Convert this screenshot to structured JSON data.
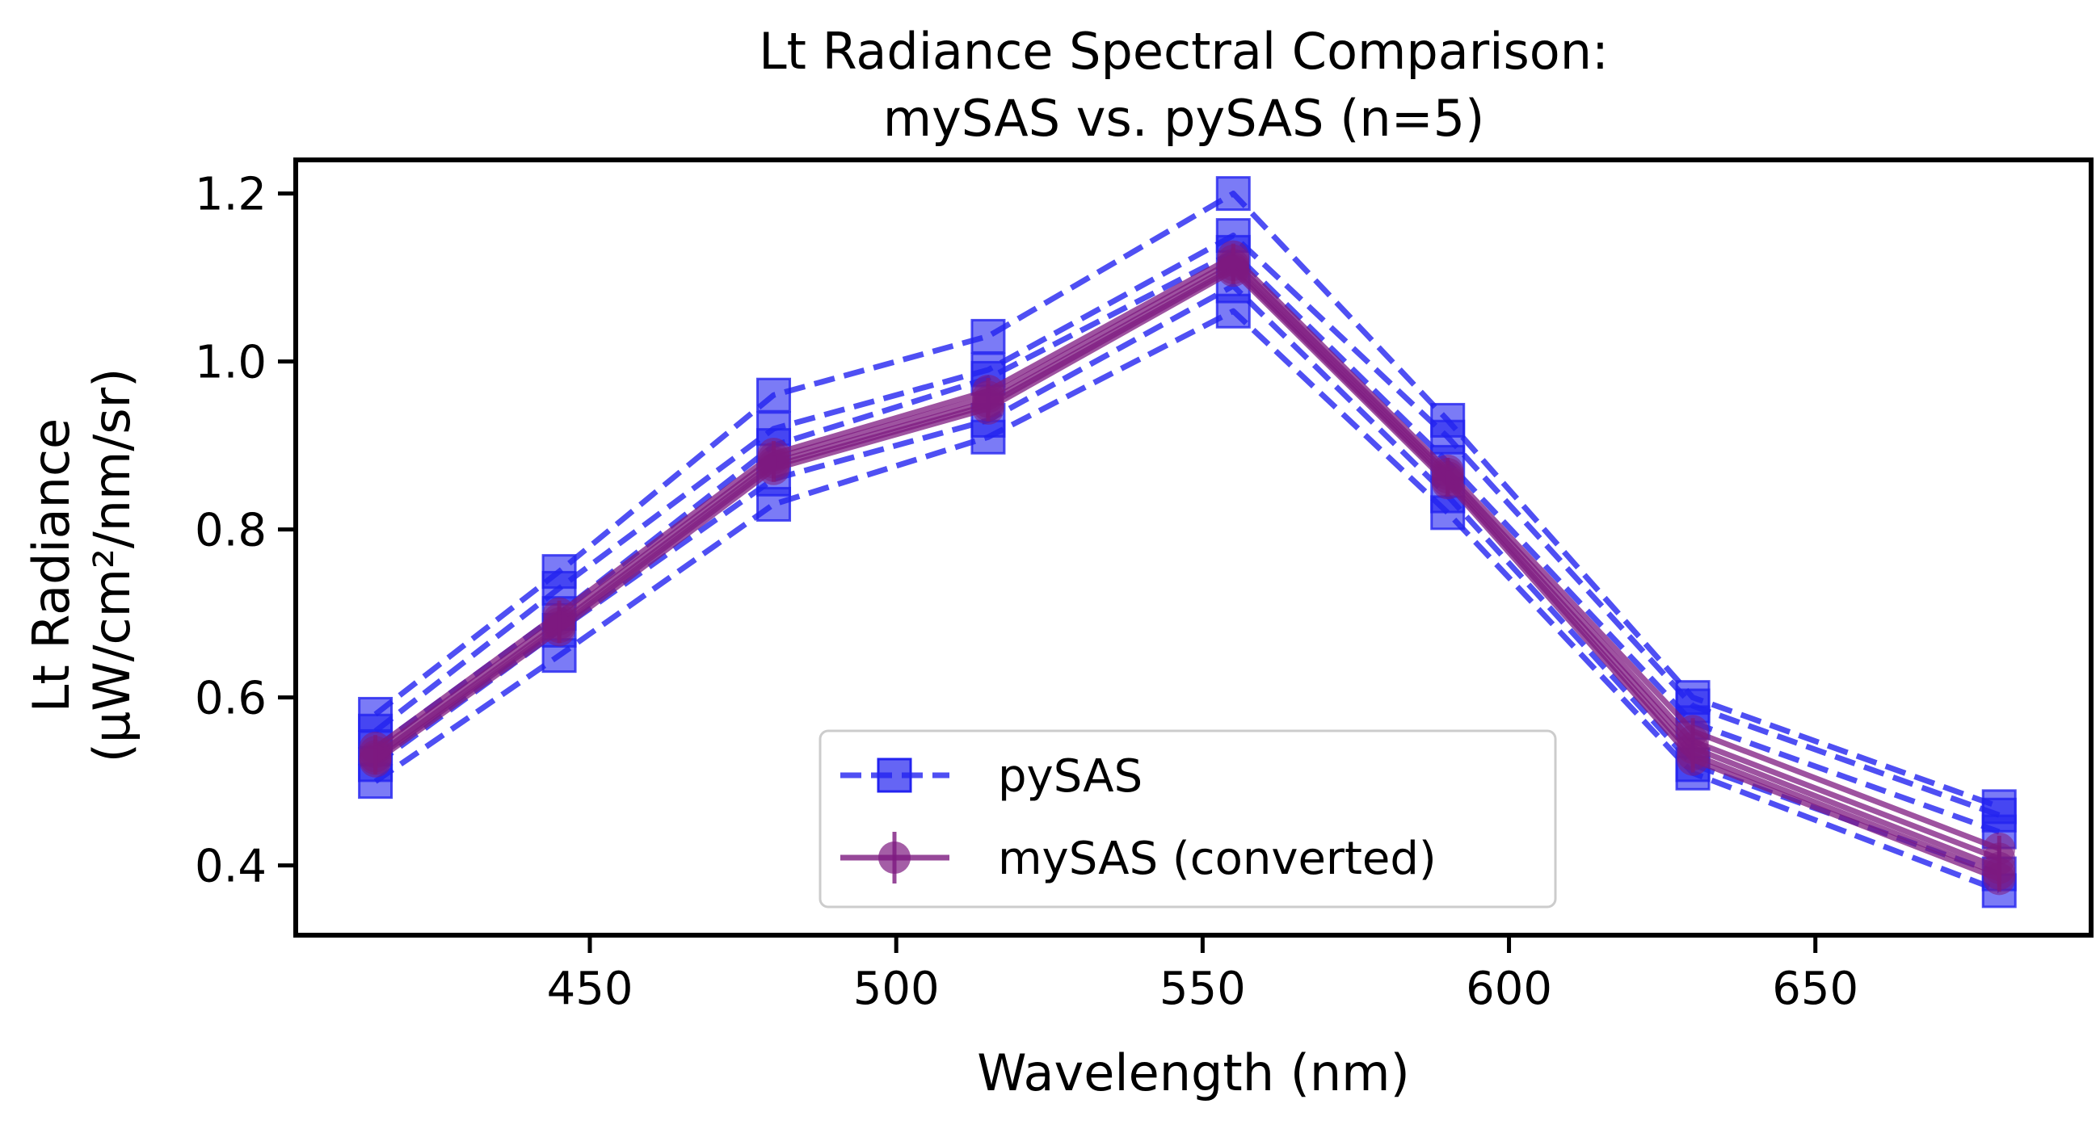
{
  "chart_data": {
    "type": "line",
    "title_line1": "Lt Radiance Spectral Comparison:",
    "title_line2": "mySAS vs. pySAS (n=5)",
    "xlabel": "Wavelength (nm)",
    "ylabel_line1": "Lt Radiance",
    "ylabel_line2": "(µW/cm²/nm/sr)",
    "xlim": [
      402,
      695
    ],
    "ylim": [
      0.317,
      1.24
    ],
    "xticks": [
      450,
      500,
      550,
      600,
      650
    ],
    "xtick_labels": [
      "450",
      "500",
      "550",
      "600",
      "650"
    ],
    "yticks": [
      0.4,
      0.6,
      0.8,
      1.0,
      1.2
    ],
    "ytick_labels": [
      "0.4",
      "0.6",
      "0.8",
      "1.0",
      "1.2"
    ],
    "x": [
      415,
      445,
      480,
      515,
      555,
      590,
      630,
      680
    ],
    "grid": false,
    "legend_position": "lower-center",
    "colors": {
      "pysas": "#2323f0",
      "mysas": "#7d1a80"
    },
    "series": [
      {
        "name": "pySAS",
        "style": "dashed-square",
        "values": [
          0.58,
          0.75,
          0.96,
          1.03,
          1.2,
          0.93,
          0.6,
          0.47
        ]
      },
      {
        "style": "dashed-square",
        "values": [
          0.56,
          0.73,
          0.92,
          0.99,
          1.15,
          0.91,
          0.59,
          0.46
        ]
      },
      {
        "style": "dashed-square",
        "values": [
          0.54,
          0.7,
          0.9,
          0.98,
          1.13,
          0.88,
          0.57,
          0.44
        ]
      },
      {
        "style": "dashed-square",
        "values": [
          0.52,
          0.68,
          0.86,
          0.93,
          1.09,
          0.84,
          0.52,
          0.39
        ]
      },
      {
        "style": "dashed-square",
        "values": [
          0.5,
          0.65,
          0.83,
          0.91,
          1.06,
          0.82,
          0.51,
          0.37
        ]
      },
      {
        "name": "mySAS (converted)",
        "style": "solid-circle",
        "values": [
          0.54,
          0.7,
          0.89,
          0.965,
          1.125,
          0.87,
          0.56,
          0.42
        ]
      },
      {
        "style": "solid-circle",
        "values": [
          0.535,
          0.693,
          0.885,
          0.958,
          1.12,
          0.866,
          0.548,
          0.408
        ]
      },
      {
        "style": "solid-circle",
        "values": [
          0.53,
          0.688,
          0.88,
          0.952,
          1.115,
          0.862,
          0.54,
          0.397
        ]
      },
      {
        "style": "solid-circle",
        "values": [
          0.527,
          0.684,
          0.876,
          0.948,
          1.111,
          0.858,
          0.532,
          0.39
        ]
      },
      {
        "style": "solid-circle",
        "values": [
          0.524,
          0.68,
          0.872,
          0.944,
          1.108,
          0.855,
          0.526,
          0.384
        ]
      }
    ],
    "legend": [
      {
        "label": "pySAS",
        "style": "dashed-square"
      },
      {
        "label": "mySAS (converted)",
        "style": "solid-circle"
      }
    ]
  }
}
